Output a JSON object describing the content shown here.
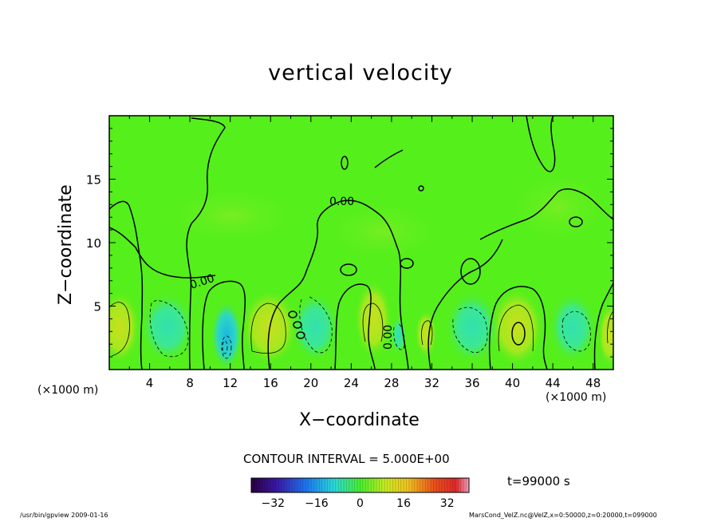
{
  "chart_data": {
    "type": "heatmap",
    "title": "vertical velocity",
    "xlabel": "X−coordinate",
    "ylabel": "Z−coordinate",
    "x_unit_label": "(×1000 m)",
    "xlim": [
      0,
      50
    ],
    "ylim": [
      0,
      20
    ],
    "x_ticks": [
      "4",
      "8",
      "12",
      "16",
      "20",
      "24",
      "28",
      "32",
      "36",
      "40",
      "44",
      "48"
    ],
    "y_ticks": [
      "5",
      "10",
      "15"
    ],
    "contour_labels": [
      "0.00",
      "0.00",
      "0.00"
    ],
    "contour_interval_text": "CONTOUR INTERVAL = 5.000E+00",
    "colorbar": {
      "range": [
        -40,
        40
      ],
      "ticks": [
        "−32",
        "−16",
        "0",
        "16",
        "32"
      ]
    },
    "time_label": "t=99000 s",
    "grid": false
  },
  "footer": {
    "left": "/usr/bin/gpview   2009-01-16",
    "right": "MarsCond_VelZ.nc@VelZ,x=0:50000,z=0:20000,t=099000"
  },
  "colors": {
    "background_field": "#55ef1c",
    "contour_line": "#000000"
  }
}
